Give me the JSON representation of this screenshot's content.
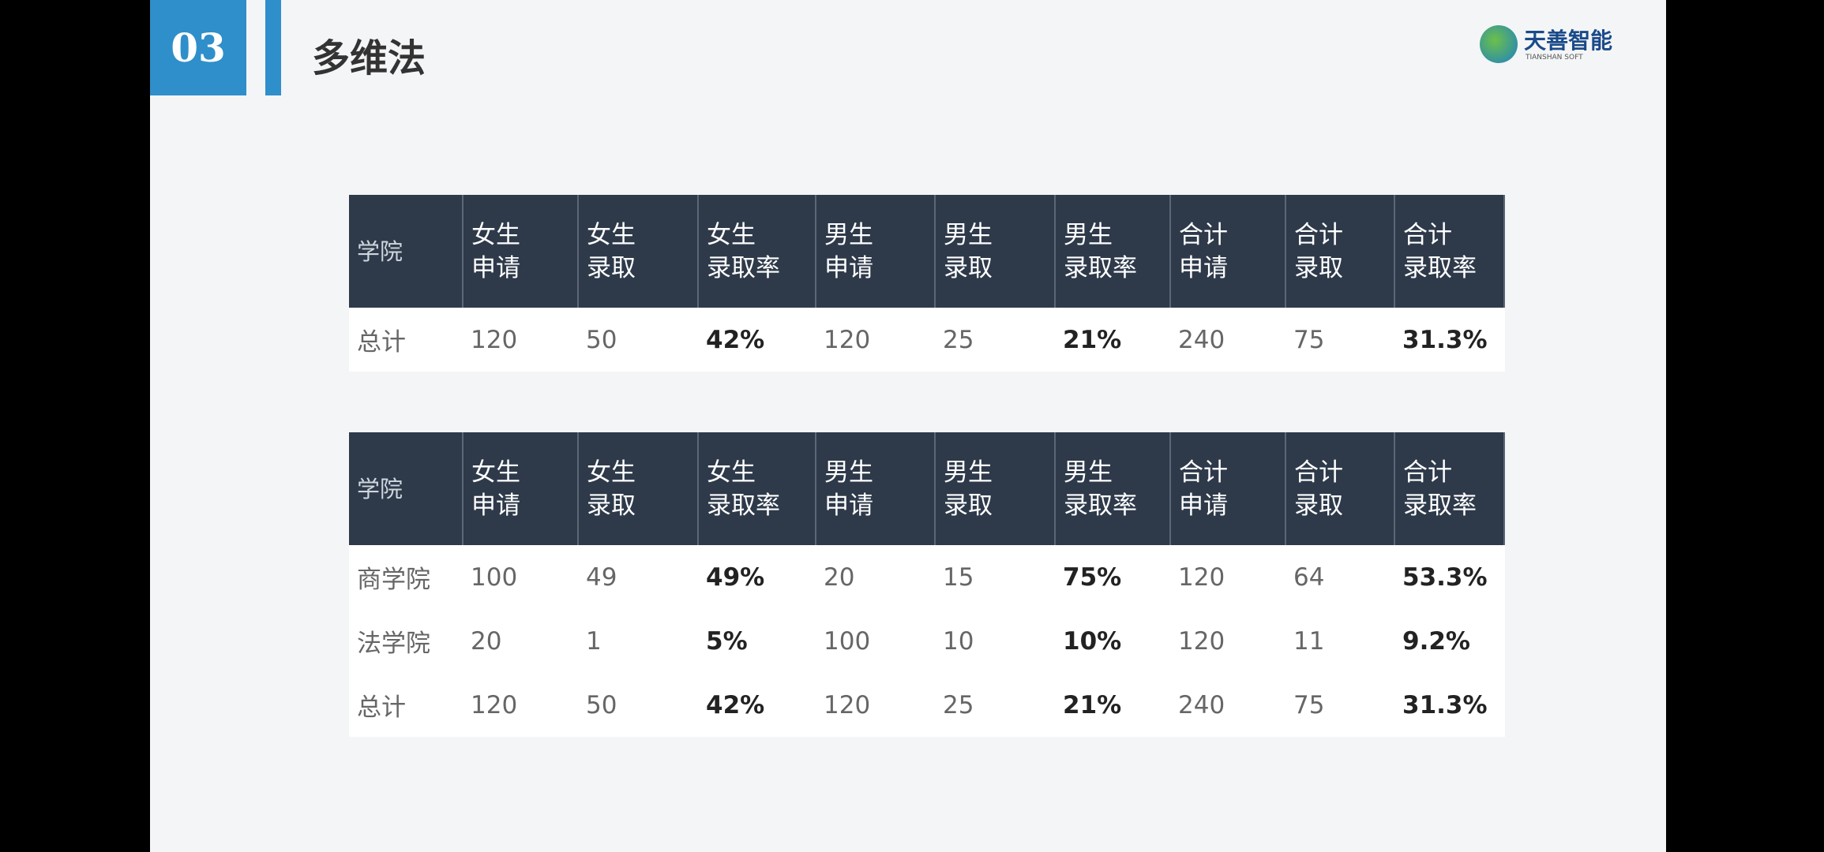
{
  "header": {
    "badge": "03",
    "title": "多维法",
    "logo": {
      "name": "天善智能",
      "subtitle": "TIANSHAN SOFT"
    }
  },
  "tables": [
    {
      "headers": [
        "学院",
        "女生\n申请",
        "女生\n录取",
        "女生\n录取率",
        "男生\n申请",
        "男生\n录取",
        "男生\n录取率",
        "合计\n申请",
        "合计\n录取",
        "合计\n录取率"
      ],
      "rows": [
        [
          "总计",
          "120",
          "50",
          "42%",
          "120",
          "25",
          "21%",
          "240",
          "75",
          "31.3%"
        ]
      ]
    },
    {
      "headers": [
        "学院",
        "女生\n申请",
        "女生\n录取",
        "女生\n录取率",
        "男生\n申请",
        "男生\n录取",
        "男生\n录取率",
        "合计\n申请",
        "合计\n录取",
        "合计\n录取率"
      ],
      "rows": [
        [
          "商学院",
          "100",
          "49",
          "49%",
          "20",
          "15",
          "75%",
          "120",
          "64",
          "53.3%"
        ],
        [
          "法学院",
          "20",
          "1",
          "5%",
          "100",
          "10",
          "10%",
          "120",
          "11",
          "9.2%"
        ],
        [
          "总计",
          "120",
          "50",
          "42%",
          "120",
          "25",
          "21%",
          "240",
          "75",
          "31.3%"
        ]
      ]
    }
  ]
}
